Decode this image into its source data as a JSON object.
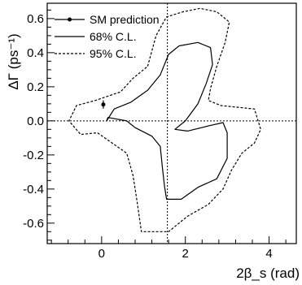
{
  "chart_data": {
    "type": "line",
    "xlabel": "2β_s (rad)",
    "ylabel": "ΔΓ (ps⁻¹)",
    "xlim": [
      -1.3,
      4.65
    ],
    "ylim": [
      -0.72,
      0.69
    ],
    "x_ticks": [
      0,
      2,
      4
    ],
    "y_ticks": [
      0.6,
      0.4,
      0.2,
      0.0,
      -0.2,
      -0.4,
      -0.6
    ],
    "y_tick_labels": [
      "0.6",
      "0.4",
      "0.2",
      "0.0",
      "-0.2",
      "-0.4",
      "-0.6"
    ],
    "reference_lines": {
      "x": 1.5708,
      "y": 0.0
    },
    "grid": false,
    "legend_position": "top-left",
    "legend": [
      {
        "label": "SM prediction",
        "style": "point-with-error"
      },
      {
        "label": "68% C.L.",
        "style": "solid"
      },
      {
        "label": "95% C.L.",
        "style": "dashed"
      }
    ],
    "series": [
      {
        "name": "SM prediction",
        "style": "point-with-error",
        "x": 0.04,
        "y": 0.096,
        "yerr": 0.024
      },
      {
        "name": "68% C.L.",
        "style": "solid",
        "closed": true,
        "points": [
          [
            1.4,
            0.27
          ],
          [
            1.6,
            0.39
          ],
          [
            1.85,
            0.44
          ],
          [
            2.3,
            0.46
          ],
          [
            2.6,
            0.43
          ],
          [
            2.65,
            0.33
          ],
          [
            2.5,
            0.22
          ],
          [
            2.3,
            0.1
          ],
          [
            2.0,
            0.0
          ],
          [
            1.75,
            -0.05
          ],
          [
            2.05,
            -0.06
          ],
          [
            2.55,
            -0.03
          ],
          [
            2.9,
            -0.01
          ],
          [
            3.0,
            -0.07
          ],
          [
            3.0,
            -0.22
          ],
          [
            2.75,
            -0.34
          ],
          [
            2.3,
            -0.39
          ],
          [
            1.9,
            -0.46
          ],
          [
            1.55,
            -0.46
          ],
          [
            1.5,
            -0.38
          ],
          [
            1.45,
            -0.27
          ],
          [
            1.4,
            -0.15
          ],
          [
            1.2,
            -0.09
          ],
          [
            0.8,
            -0.04
          ],
          [
            0.6,
            0.0
          ],
          [
            0.15,
            0.02
          ],
          [
            0.12,
            0.0
          ],
          [
            0.3,
            0.07
          ],
          [
            0.7,
            0.11
          ],
          [
            1.1,
            0.18
          ]
        ]
      },
      {
        "name": "95% C.L.",
        "style": "dashed",
        "closed": true,
        "points": [
          [
            1.1,
            0.32
          ],
          [
            1.3,
            0.5
          ],
          [
            1.55,
            0.61
          ],
          [
            1.95,
            0.64
          ],
          [
            2.35,
            0.66
          ],
          [
            2.75,
            0.64
          ],
          [
            3.05,
            0.58
          ],
          [
            2.95,
            0.46
          ],
          [
            2.75,
            0.32
          ],
          [
            2.6,
            0.19
          ],
          [
            2.55,
            0.12
          ],
          [
            2.85,
            0.09
          ],
          [
            3.25,
            0.08
          ],
          [
            3.65,
            0.07
          ],
          [
            3.8,
            -0.05
          ],
          [
            3.65,
            -0.13
          ],
          [
            3.35,
            -0.19
          ],
          [
            3.1,
            -0.29
          ],
          [
            2.9,
            -0.4
          ],
          [
            2.55,
            -0.49
          ],
          [
            2.05,
            -0.56
          ],
          [
            1.6,
            -0.65
          ],
          [
            0.95,
            -0.65
          ],
          [
            0.85,
            -0.48
          ],
          [
            0.75,
            -0.32
          ],
          [
            0.6,
            -0.19
          ],
          [
            -0.1,
            -0.07
          ],
          [
            -0.5,
            -0.08
          ],
          [
            -0.78,
            0.0
          ],
          [
            -0.6,
            0.09
          ],
          [
            -0.15,
            0.12
          ],
          [
            0.45,
            0.17
          ],
          [
            0.75,
            0.25
          ]
        ]
      }
    ]
  }
}
